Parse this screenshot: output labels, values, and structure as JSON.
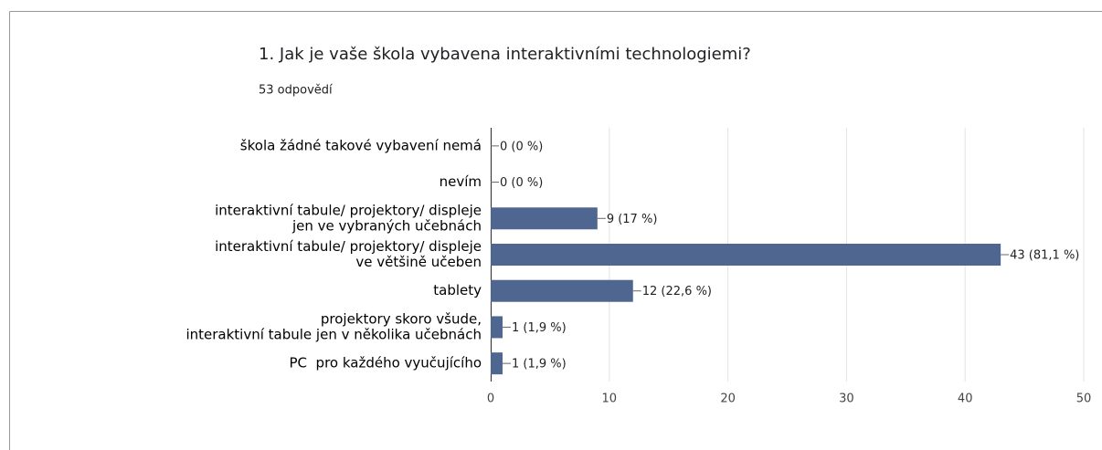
{
  "chart_data": {
    "type": "barh",
    "title": "1. Jak je vaše škola vybavena interaktivními technologiemi?",
    "subtitle": "53 odpovědí",
    "categories": [
      [
        "škola žádné takové vybavení nemá"
      ],
      [
        "nevím"
      ],
      [
        "interaktivní tabule/ projektory/ displeje",
        "jen ve vybraných učebnách"
      ],
      [
        "interaktivní tabule/ projektory/ displeje",
        "ve většině učeben"
      ],
      [
        "tablety"
      ],
      [
        "projektory skoro všude,",
        "interaktivní tabule jen v několika učebnách"
      ],
      [
        "PC  pro každého vyučujícího"
      ]
    ],
    "values": [
      0,
      0,
      9,
      43,
      12,
      1,
      1
    ],
    "value_labels": [
      "0 (0 %)",
      "0 (0 %)",
      "9 (17 %)",
      "43 (81,1 %)",
      "12 (22,6 %)",
      "1 (1,9 %)",
      "1 (1,9 %)"
    ],
    "color": "#4f6690",
    "xlim": [
      0,
      50
    ],
    "xticks": [
      0,
      10,
      20,
      30,
      40,
      50
    ],
    "grid": true
  }
}
